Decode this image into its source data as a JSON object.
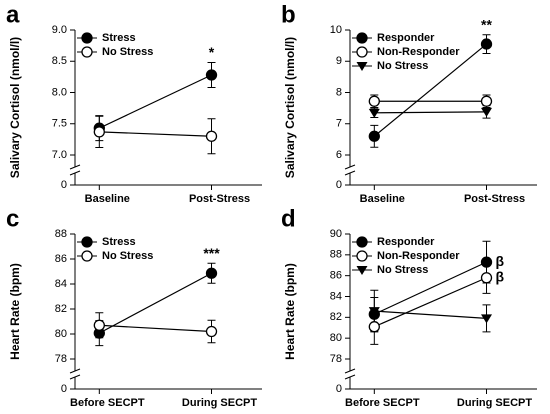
{
  "chart_data": [
    {
      "type": "line",
      "label": "a",
      "ylabel": "Salivary Cortisol (nmol/l)",
      "categories": [
        "Baseline",
        "Post-Stress"
      ],
      "ylim": [
        0,
        9
      ],
      "axis_break": true,
      "yticks": [
        0,
        {
          "value": 7,
          "label": "7.0"
        },
        7.5,
        {
          "value": 8,
          "label": "8.0"
        },
        8.5,
        {
          "value": 9,
          "label": "9.0"
        }
      ],
      "legend": "top-left",
      "series": [
        {
          "name": "Stress",
          "color": "#000000",
          "marker": "filled-circle",
          "values": [
            7.43,
            8.28
          ],
          "errors": [
            0.2,
            0.2
          ]
        },
        {
          "name": "No Stress",
          "color": "#000000",
          "marker": "open-circle",
          "values": [
            7.37,
            7.3
          ],
          "errors": [
            0.25,
            0.28
          ]
        }
      ],
      "annotations": [
        {
          "text": "*",
          "series": 0,
          "index": 1
        }
      ]
    },
    {
      "type": "line",
      "label": "b",
      "ylabel": "Salivary Cortisol (nmol/l)",
      "categories": [
        "Baseline",
        "Post-Stress"
      ],
      "ylim": [
        0,
        10
      ],
      "axis_break": true,
      "yticks": [
        0,
        6,
        7,
        8,
        9,
        10
      ],
      "legend": "top-left",
      "series": [
        {
          "name": "Responder",
          "color": "#000000",
          "marker": "filled-circle",
          "values": [
            6.6,
            9.55
          ],
          "errors": [
            0.35,
            0.3
          ]
        },
        {
          "name": "Non-Responder",
          "color": "#000000",
          "marker": "open-circle",
          "values": [
            7.72,
            7.72
          ],
          "errors": [
            0.2,
            0.2
          ]
        },
        {
          "name": "No Stress",
          "color": "#000000",
          "marker": "filled-triangle-down",
          "values": [
            7.35,
            7.38
          ],
          "errors": [
            0.15,
            0.2
          ]
        }
      ],
      "annotations": [
        {
          "text": "**",
          "series": 0,
          "index": 1
        }
      ]
    },
    {
      "type": "line",
      "label": "c",
      "ylabel": "Heart Rate (bpm)",
      "categories": [
        "Before SECPT",
        "During SECPT"
      ],
      "ylim": [
        0,
        88
      ],
      "axis_break": true,
      "yticks": [
        0,
        78,
        80,
        82,
        84,
        86,
        88
      ],
      "legend": "top-left",
      "series": [
        {
          "name": "Stress",
          "color": "#000000",
          "marker": "filled-circle",
          "values": [
            80.07,
            84.86
          ],
          "errors": [
            1.0,
            0.8
          ]
        },
        {
          "name": "No Stress",
          "color": "#000000",
          "marker": "open-circle",
          "values": [
            80.7,
            80.2
          ],
          "errors": [
            1.0,
            0.9
          ]
        }
      ],
      "annotations": [
        {
          "text": "***",
          "series": 0,
          "index": 1
        }
      ]
    },
    {
      "type": "line",
      "label": "d",
      "ylabel": "Heart Rate (bpm)",
      "categories": [
        "Before SECPT",
        "During SECPT"
      ],
      "ylim": [
        0,
        90
      ],
      "axis_break": true,
      "yticks": [
        0,
        78,
        80,
        82,
        84,
        86,
        88,
        90
      ],
      "legend": "top-left",
      "series": [
        {
          "name": "Responder",
          "color": "#000000",
          "marker": "filled-circle",
          "values": [
            82.3,
            87.3
          ],
          "errors": [
            1.6,
            2.0
          ]
        },
        {
          "name": "Non-Responder",
          "color": "#000000",
          "marker": "open-circle",
          "values": [
            81.1,
            85.8
          ],
          "errors": [
            1.7,
            1.5
          ]
        },
        {
          "name": "No Stress",
          "color": "#000000",
          "marker": "filled-triangle-down",
          "values": [
            82.6,
            81.9
          ],
          "errors": [
            2.0,
            1.3
          ]
        }
      ],
      "annotations": [
        {
          "text": "β",
          "series": 0,
          "index": 1
        },
        {
          "text": "β",
          "series": 1,
          "index": 1
        }
      ]
    }
  ]
}
